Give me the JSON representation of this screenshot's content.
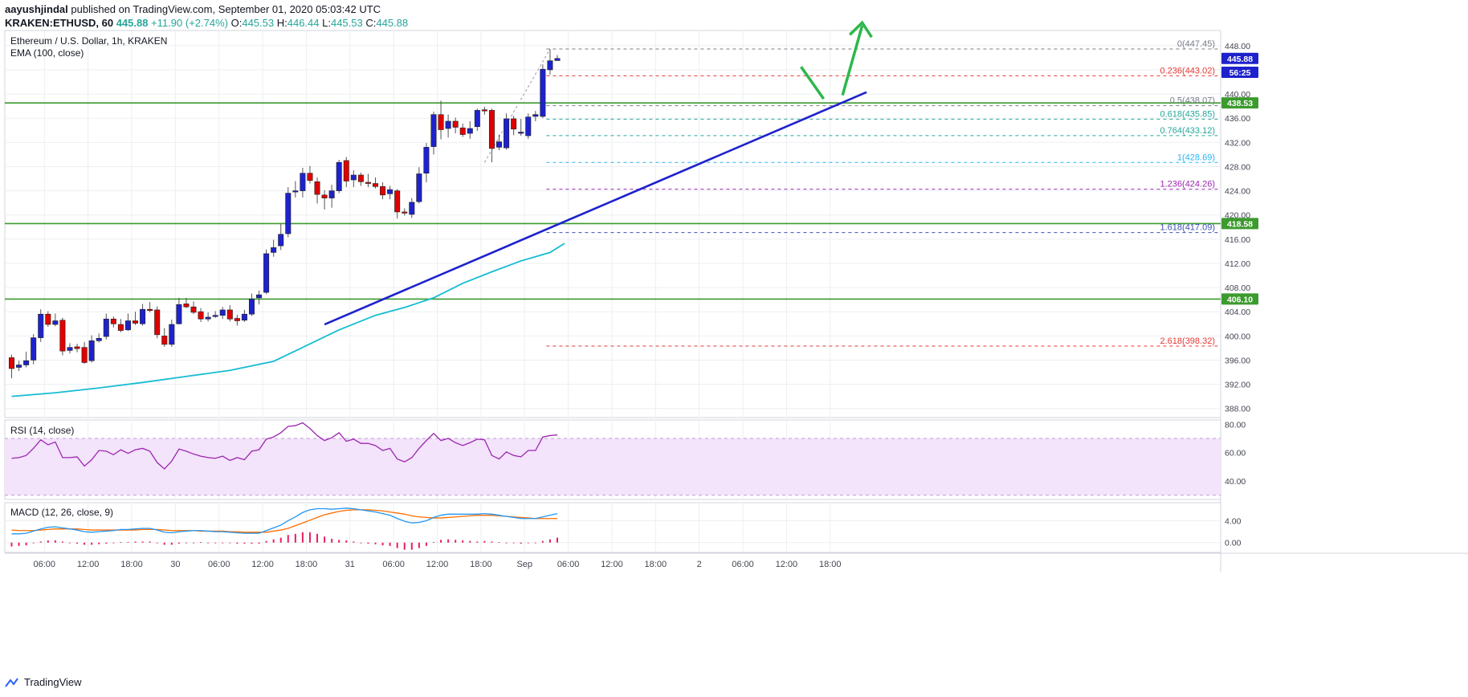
{
  "header": {
    "author": "aayushjindal",
    "published_text": "published on TradingView.com, September 01, 2020 05:03:42 UTC",
    "symbol": "KRAKEN:ETHUSD, 60",
    "last": "445.88",
    "change": "+11.90 (+2.74%)",
    "o_label": "O:",
    "o_value": "445.53",
    "h_label": "H:",
    "h_value": "446.44",
    "l_label": "L:",
    "l_value": "445.53",
    "c_label": "C:",
    "c_value": "445.88"
  },
  "footer": {
    "brand": "TradingView"
  },
  "chart_data": [
    {
      "type": "candlestick",
      "title": "Ethereum / U.S. Dollar, 1h, KRAKEN",
      "indicator_label": "EMA (100, close)",
      "y_ticks": [
        388.0,
        392.0,
        396.0,
        400.0,
        404.0,
        408.0,
        412.0,
        416.0,
        420.0,
        424.0,
        428.0,
        432.0,
        436.0,
        440.0,
        444.0,
        448.0
      ],
      "y_tick_labels": [
        "388.00",
        "392.00",
        "396.00",
        "400.00",
        "404.00",
        "408.00",
        "412.00",
        "416.00",
        "420.00",
        "424.00",
        "428.00",
        "432.00",
        "436.00",
        "440.00",
        "444.00",
        "448.00"
      ],
      "ylim": [
        386.5,
        450.5
      ],
      "x_ticks": [
        "06:00",
        "12:00",
        "18:00",
        "30",
        "06:00",
        "12:00",
        "18:00",
        "31",
        "06:00",
        "12:00",
        "18:00",
        "Sep",
        "06:00",
        "12:00",
        "18:00",
        "2",
        "06:00",
        "12:00",
        "18:00"
      ],
      "price_tags": [
        {
          "label": "445.88",
          "value": 445.88,
          "color": "#1e22cc"
        },
        {
          "label": "56:25",
          "value": 443.6,
          "color": "#1e22cc"
        },
        {
          "label": "438.53",
          "value": 438.53,
          "color": "#3c9a2e"
        },
        {
          "label": "418.58",
          "value": 418.58,
          "color": "#3c9a2e"
        },
        {
          "label": "406.10",
          "value": 406.1,
          "color": "#3c9a2e"
        }
      ],
      "horizontal_levels": [
        438.53,
        418.58,
        406.1
      ],
      "fib_levels": [
        {
          "label": "0(447.45)",
          "value": 447.45,
          "color": "#787b86"
        },
        {
          "label": "0.236(443.02)",
          "value": 443.02,
          "color": "#e53935"
        },
        {
          "label": "0.5(438.07)",
          "value": 438.07,
          "color": "#787b86"
        },
        {
          "label": "0.618(435.85)",
          "value": 435.85,
          "color": "#26a69a"
        },
        {
          "label": "0.764(433.12)",
          "value": 433.12,
          "color": "#26a69a"
        },
        {
          "label": "1(428.69)",
          "value": 428.69,
          "color": "#29b6f6"
        },
        {
          "label": "1.236(424.26)",
          "value": 424.26,
          "color": "#9c27b0"
        },
        {
          "label": "1.618(417.09)",
          "value": 417.09,
          "color": "#3f51b5"
        },
        {
          "label": "2.618(398.32)",
          "value": 398.32,
          "color": "#e53935"
        }
      ],
      "trendline": [
        [
          402.1,
          401.9
        ],
        [
          1.0,
          440.3
        ]
      ],
      "candles": [
        [
          396.4,
          394.6,
          396.9,
          393.0
        ],
        [
          394.8,
          395.2,
          395.9,
          394.2
        ],
        [
          395.2,
          395.9,
          397.4,
          394.8
        ],
        [
          396.0,
          399.7,
          400.3,
          395.3
        ],
        [
          399.7,
          403.6,
          404.4,
          399.0
        ],
        [
          403.6,
          401.9,
          404.1,
          401.5
        ],
        [
          401.9,
          402.5,
          403.7,
          401.6
        ],
        [
          402.6,
          397.5,
          403.0,
          396.8
        ],
        [
          397.6,
          398.1,
          398.8,
          397.1
        ],
        [
          398.2,
          397.9,
          398.7,
          397.3
        ],
        [
          398.1,
          395.6,
          399.0,
          395.4
        ],
        [
          395.9,
          399.2,
          400.1,
          395.6
        ],
        [
          399.2,
          399.6,
          400.4,
          398.9
        ],
        [
          399.9,
          402.8,
          403.7,
          399.4
        ],
        [
          402.8,
          402.0,
          403.2,
          401.4
        ],
        [
          401.9,
          400.9,
          402.8,
          400.6
        ],
        [
          401.0,
          402.5,
          403.7,
          400.8
        ],
        [
          402.5,
          402.1,
          404.0,
          401.8
        ],
        [
          402.0,
          404.4,
          405.3,
          401.7
        ],
        [
          404.4,
          404.2,
          405.6,
          403.9
        ],
        [
          404.3,
          400.2,
          404.9,
          399.6
        ],
        [
          400.0,
          398.6,
          401.3,
          398.2
        ],
        [
          398.6,
          401.9,
          402.7,
          398.2
        ],
        [
          402.0,
          405.2,
          406.3,
          401.9
        ],
        [
          405.3,
          404.8,
          406.3,
          404.6
        ],
        [
          404.8,
          403.9,
          405.7,
          403.6
        ],
        [
          404.0,
          402.8,
          404.6,
          402.3
        ],
        [
          402.8,
          403.1,
          403.9,
          402.4
        ],
        [
          403.2,
          403.4,
          404.1,
          403.0
        ],
        [
          403.4,
          404.3,
          404.8,
          402.8
        ],
        [
          404.3,
          402.8,
          405.1,
          402.4
        ],
        [
          402.9,
          402.5,
          403.5,
          401.7
        ],
        [
          402.6,
          403.6,
          404.3,
          402.3
        ],
        [
          403.6,
          406.1,
          407.0,
          403.3
        ],
        [
          406.3,
          406.8,
          407.5,
          405.2
        ],
        [
          407.2,
          413.6,
          414.3,
          406.9
        ],
        [
          413.8,
          414.6,
          415.9,
          413.1
        ],
        [
          414.9,
          416.8,
          418.5,
          414.2
        ],
        [
          416.9,
          423.6,
          424.6,
          416.3
        ],
        [
          423.9,
          424.0,
          425.6,
          422.9
        ],
        [
          424.0,
          426.9,
          427.8,
          422.9
        ],
        [
          426.9,
          425.7,
          428.1,
          425.2
        ],
        [
          425.5,
          423.4,
          426.2,
          421.9
        ],
        [
          423.3,
          422.8,
          424.1,
          420.9
        ],
        [
          422.8,
          424.0,
          425.0,
          421.2
        ],
        [
          424.0,
          428.7,
          429.1,
          423.6
        ],
        [
          429.0,
          425.6,
          429.6,
          424.6
        ],
        [
          425.8,
          426.6,
          427.4,
          424.6
        ],
        [
          426.6,
          425.5,
          427.0,
          424.8
        ],
        [
          425.4,
          425.3,
          426.8,
          424.6
        ],
        [
          425.2,
          424.7,
          426.2,
          424.4
        ],
        [
          424.7,
          423.3,
          425.4,
          422.6
        ],
        [
          423.5,
          424.2,
          424.8,
          422.6
        ],
        [
          424.0,
          420.5,
          424.3,
          419.4
        ],
        [
          420.5,
          420.4,
          421.1,
          419.9
        ],
        [
          420.1,
          422.1,
          422.8,
          419.5
        ],
        [
          422.2,
          426.8,
          427.9,
          421.9
        ],
        [
          426.9,
          431.2,
          431.9,
          425.4
        ],
        [
          431.3,
          436.6,
          437.1,
          430.0
        ],
        [
          436.6,
          434.1,
          438.9,
          432.5
        ],
        [
          434.3,
          435.5,
          436.6,
          432.8
        ],
        [
          435.5,
          434.5,
          436.1,
          433.5
        ],
        [
          434.4,
          433.3,
          435.1,
          432.9
        ],
        [
          433.5,
          434.3,
          435.5,
          432.6
        ],
        [
          434.6,
          437.3,
          437.6,
          433.9
        ],
        [
          437.4,
          437.2,
          437.9,
          436.6
        ],
        [
          437.3,
          431.0,
          437.6,
          428.7
        ],
        [
          431.2,
          432.1,
          433.3,
          430.7
        ],
        [
          431.1,
          435.9,
          436.8,
          430.8
        ],
        [
          435.9,
          434.2,
          436.4,
          433.2
        ],
        [
          433.6,
          433.7,
          435.9,
          433.1
        ],
        [
          433.1,
          436.2,
          436.8,
          432.6
        ],
        [
          436.3,
          436.6,
          437.2,
          435.5
        ],
        [
          436.3,
          444.1,
          444.9,
          436.0
        ],
        [
          444.0,
          445.5,
          447.45,
          443.2
        ],
        [
          445.53,
          445.88,
          446.44,
          445.53
        ]
      ],
      "ema": [
        [
          0,
          390.0
        ],
        [
          6,
          390.6
        ],
        [
          12,
          391.4
        ],
        [
          18,
          392.3
        ],
        [
          24,
          393.3
        ],
        [
          30,
          394.3
        ],
        [
          36,
          395.8
        ],
        [
          40,
          398.1
        ],
        [
          45,
          401.0
        ],
        [
          50,
          403.4
        ],
        [
          54,
          404.7
        ],
        [
          58,
          406.3
        ],
        [
          62,
          408.7
        ],
        [
          66,
          410.6
        ],
        [
          70,
          412.4
        ],
        [
          74,
          413.8
        ],
        [
          76,
          415.3
        ]
      ]
    },
    {
      "type": "line",
      "title": "RSI (14, close)",
      "y_tick_labels": [
        "80.00",
        "60.00",
        "40.00"
      ],
      "y_ticks": [
        80,
        60,
        40
      ],
      "ylim": [
        27.0,
        83.0
      ],
      "band": [
        30,
        70
      ],
      "values": [
        56.0,
        56.5,
        58.0,
        63.0,
        69.0,
        65.5,
        67.5,
        56.5,
        56.5,
        57.0,
        50.5,
        55.0,
        61.5,
        61.0,
        58.5,
        62.0,
        59.5,
        62.0,
        63.0,
        61.0,
        53.0,
        48.5,
        54.0,
        62.5,
        61.0,
        59.0,
        57.5,
        56.5,
        56.0,
        57.5,
        54.5,
        56.5,
        55.0,
        61.0,
        62.0,
        69.5,
        71.0,
        74.0,
        78.5,
        79.0,
        81.0,
        77.0,
        72.0,
        68.5,
        70.5,
        74.0,
        68.0,
        69.5,
        66.5,
        66.5,
        65.0,
        61.5,
        63.0,
        55.5,
        53.5,
        56.5,
        63.0,
        68.5,
        73.5,
        68.5,
        70.0,
        67.0,
        65.0,
        67.0,
        69.5,
        69.0,
        58.0,
        55.5,
        60.5,
        58.0,
        57.0,
        61.5,
        61.5,
        71.0,
        72.0,
        72.5
      ]
    },
    {
      "type": "line",
      "title": "MACD (12, 26, close, 9)",
      "y_tick_labels": [
        "4.00",
        "0.00"
      ],
      "y_ticks": [
        4,
        0
      ],
      "ylim": [
        -1.8,
        7.3
      ],
      "macd": [
        1.6,
        1.6,
        1.7,
        2.1,
        2.5,
        2.8,
        2.9,
        2.7,
        2.5,
        2.3,
        2.0,
        1.9,
        2.0,
        2.1,
        2.2,
        2.4,
        2.4,
        2.5,
        2.6,
        2.6,
        2.3,
        1.9,
        1.8,
        2.0,
        2.1,
        2.2,
        2.2,
        2.1,
        2.0,
        2.0,
        1.9,
        1.8,
        1.7,
        1.7,
        1.7,
        2.2,
        2.7,
        3.2,
        4.0,
        4.7,
        5.5,
        6.0,
        6.2,
        6.2,
        6.1,
        6.2,
        6.3,
        6.2,
        6.0,
        5.8,
        5.6,
        5.3,
        5.0,
        4.4,
        3.9,
        3.6,
        3.7,
        4.0,
        4.6,
        5.0,
        5.2,
        5.2,
        5.2,
        5.2,
        5.2,
        5.3,
        5.2,
        5.0,
        4.8,
        4.6,
        4.4,
        4.4,
        4.4,
        4.7,
        5.0,
        5.3
      ],
      "signal": [
        2.3,
        2.2,
        2.2,
        2.2,
        2.3,
        2.4,
        2.5,
        2.5,
        2.5,
        2.5,
        2.4,
        2.3,
        2.3,
        2.3,
        2.3,
        2.3,
        2.3,
        2.3,
        2.4,
        2.4,
        2.4,
        2.3,
        2.2,
        2.2,
        2.2,
        2.2,
        2.1,
        2.1,
        2.1,
        2.1,
        2.0,
        2.0,
        1.9,
        1.9,
        1.9,
        1.9,
        2.1,
        2.3,
        2.6,
        3.1,
        3.6,
        4.1,
        4.6,
        5.1,
        5.4,
        5.7,
        5.9,
        6.0,
        6.0,
        6.0,
        5.9,
        5.8,
        5.6,
        5.4,
        5.2,
        4.9,
        4.7,
        4.6,
        4.5,
        4.5,
        4.6,
        4.7,
        4.8,
        4.9,
        5.0,
        5.0,
        5.0,
        4.9,
        4.8,
        4.7,
        4.6,
        4.5,
        4.4,
        4.4,
        4.4,
        4.4
      ],
      "histogram": [
        -0.7,
        -0.6,
        -0.5,
        -0.1,
        0.2,
        0.4,
        0.4,
        0.2,
        0.0,
        -0.2,
        -0.4,
        -0.4,
        -0.3,
        -0.2,
        -0.1,
        0.1,
        0.1,
        0.2,
        0.2,
        0.2,
        -0.1,
        -0.4,
        -0.4,
        -0.2,
        -0.1,
        0.0,
        0.1,
        0.0,
        -0.1,
        -0.1,
        -0.1,
        -0.2,
        -0.2,
        -0.2,
        -0.2,
        0.3,
        0.6,
        0.9,
        1.4,
        1.6,
        1.9,
        1.9,
        1.6,
        1.1,
        0.7,
        0.5,
        0.4,
        0.2,
        0.0,
        -0.2,
        -0.3,
        -0.5,
        -0.6,
        -1.0,
        -1.3,
        -1.3,
        -1.0,
        -0.6,
        0.1,
        0.5,
        0.6,
        0.5,
        0.4,
        0.3,
        0.2,
        0.3,
        0.2,
        0.1,
        0.0,
        -0.1,
        -0.2,
        -0.1,
        0.0,
        0.3,
        0.6,
        0.9
      ]
    }
  ],
  "colors": {
    "bull": "#1e22cc",
    "bear": "#e00000",
    "ema": "#16bcd4",
    "trend": "#1e22cc",
    "level": "#3c9a2e",
    "arrow": "#2db84a",
    "rsi": "#9c27b0",
    "macd": "#2196f3",
    "signal": "#ff6d00",
    "hist": "#e91e63"
  }
}
